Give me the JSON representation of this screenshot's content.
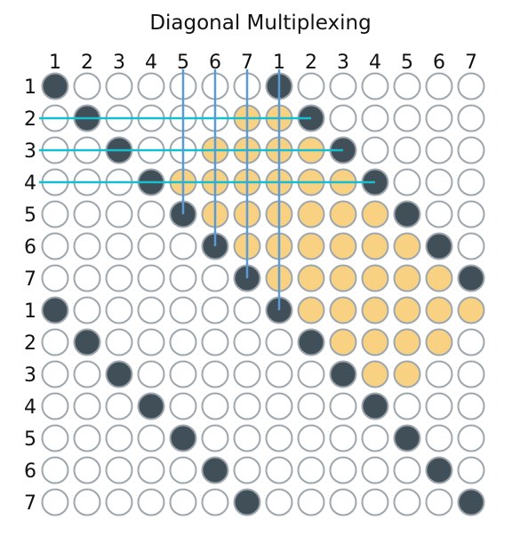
{
  "title": "Diagonal Multiplexing",
  "column_labels": [
    "1",
    "2",
    "3",
    "4",
    "5",
    "6",
    "7",
    "1",
    "2",
    "3",
    "4",
    "5",
    "6",
    "7"
  ],
  "row_labels": [
    "1",
    "2",
    "3",
    "4",
    "5",
    "6",
    "7",
    "1",
    "2",
    "3",
    "4",
    "5",
    "6",
    "7"
  ],
  "colors": {
    "ring": "#9ea7ad",
    "active": "#414f58",
    "highlight": "#f8d282",
    "empty": "#ffffff",
    "vertical_line": "#5b9bd5",
    "horizontal_line": "#17becf"
  },
  "grid": {
    "rows": 14,
    "cols": 14,
    "active_cells": [
      [
        1,
        1
      ],
      [
        1,
        8
      ],
      [
        2,
        2
      ],
      [
        2,
        9
      ],
      [
        3,
        3
      ],
      [
        3,
        10
      ],
      [
        4,
        4
      ],
      [
        4,
        11
      ],
      [
        5,
        5
      ],
      [
        5,
        12
      ],
      [
        6,
        6
      ],
      [
        6,
        13
      ],
      [
        7,
        7
      ],
      [
        7,
        14
      ],
      [
        8,
        1
      ],
      [
        8,
        8
      ],
      [
        9,
        2
      ],
      [
        9,
        9
      ],
      [
        10,
        3
      ],
      [
        10,
        10
      ],
      [
        11,
        4
      ],
      [
        11,
        11
      ],
      [
        12,
        5
      ],
      [
        12,
        12
      ],
      [
        13,
        6
      ],
      [
        13,
        13
      ],
      [
        14,
        7
      ],
      [
        14,
        14
      ]
    ],
    "highlighted_cells": [
      [
        2,
        7
      ],
      [
        2,
        8
      ],
      [
        3,
        6
      ],
      [
        3,
        7
      ],
      [
        3,
        8
      ],
      [
        3,
        9
      ],
      [
        4,
        5
      ],
      [
        4,
        6
      ],
      [
        4,
        7
      ],
      [
        4,
        8
      ],
      [
        4,
        9
      ],
      [
        4,
        10
      ],
      [
        5,
        6
      ],
      [
        5,
        7
      ],
      [
        5,
        8
      ],
      [
        5,
        9
      ],
      [
        5,
        10
      ],
      [
        5,
        11
      ],
      [
        6,
        7
      ],
      [
        6,
        8
      ],
      [
        6,
        9
      ],
      [
        6,
        10
      ],
      [
        6,
        11
      ],
      [
        6,
        12
      ],
      [
        7,
        8
      ],
      [
        7,
        9
      ],
      [
        7,
        10
      ],
      [
        7,
        11
      ],
      [
        7,
        12
      ],
      [
        7,
        13
      ],
      [
        8,
        9
      ],
      [
        8,
        10
      ],
      [
        8,
        11
      ],
      [
        8,
        12
      ],
      [
        8,
        13
      ],
      [
        8,
        14
      ],
      [
        9,
        10
      ],
      [
        9,
        11
      ],
      [
        9,
        12
      ],
      [
        9,
        13
      ],
      [
        10,
        11
      ],
      [
        10,
        12
      ]
    ]
  },
  "vertical_lines": [
    {
      "column": 5,
      "from_row": 1,
      "to_row": 5
    },
    {
      "column": 6,
      "from_row": 1,
      "to_row": 6
    },
    {
      "column": 7,
      "from_row": 1,
      "to_row": 7
    },
    {
      "column": 8,
      "from_row": 1,
      "to_row": 8
    }
  ],
  "horizontal_lines": [
    {
      "row": 2,
      "to_column": 9
    },
    {
      "row": 3,
      "to_column": 10
    },
    {
      "row": 4,
      "to_column": 11
    }
  ]
}
